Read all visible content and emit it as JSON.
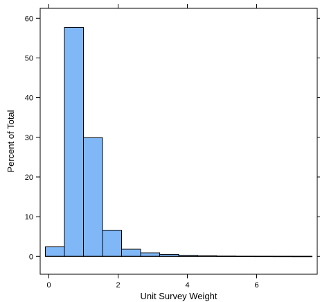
{
  "chart_data": {
    "type": "bar",
    "xlabel": "Unit Survey Weight",
    "ylabel": "Percent of Total",
    "xlim": [
      -0.25,
      7.75
    ],
    "ylim": [
      -4.5,
      62.5
    ],
    "x_ticks": [
      0,
      2,
      4,
      6
    ],
    "x_tick_labels": [
      "0",
      "2",
      "4",
      "6"
    ],
    "y_ticks": [
      0,
      10,
      20,
      30,
      40,
      50,
      60
    ],
    "y_tick_labels": [
      "0",
      "10",
      "20",
      "30",
      "40",
      "50",
      "60"
    ],
    "bin_edges": [
      -0.1,
      0.45,
      1.0,
      1.55,
      2.1,
      2.65,
      3.2,
      3.75,
      4.3,
      4.85,
      5.4,
      5.95,
      6.5,
      7.05,
      7.6
    ],
    "values": [
      2.4,
      57.7,
      29.9,
      6.6,
      1.8,
      0.9,
      0.5,
      0.25,
      0.15,
      0.08,
      0.05,
      0.04,
      0.03,
      0.02
    ],
    "grid": false,
    "legend": "none",
    "bar_fill": "#80b7f7",
    "bar_stroke": "#000000"
  }
}
